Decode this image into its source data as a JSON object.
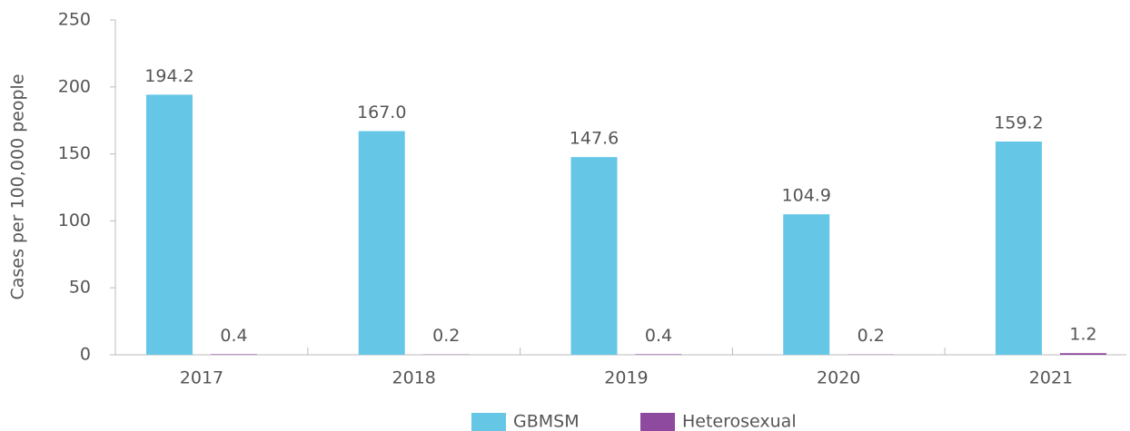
{
  "chart_data": {
    "type": "bar",
    "y_label": "Cases per 100,000 people",
    "categories": [
      "2017",
      "2018",
      "2019",
      "2020",
      "2021"
    ],
    "series": [
      {
        "name": "GBMSM",
        "color": "#65c6e6",
        "values": [
          194.2,
          167.0,
          147.6,
          104.9,
          159.2
        ],
        "value_labels": [
          "194.2",
          "167.0",
          "147.6",
          "104.9",
          "159.2"
        ]
      },
      {
        "name": "Heterosexual",
        "color": "#8e4a9e",
        "values": [
          0.4,
          0.2,
          0.4,
          0.2,
          1.2
        ]
      }
    ],
    "ylim": [
      0,
      250
    ],
    "yticks": [
      0,
      50,
      100,
      150,
      200,
      250
    ],
    "grid": false,
    "legend": "bottom"
  }
}
